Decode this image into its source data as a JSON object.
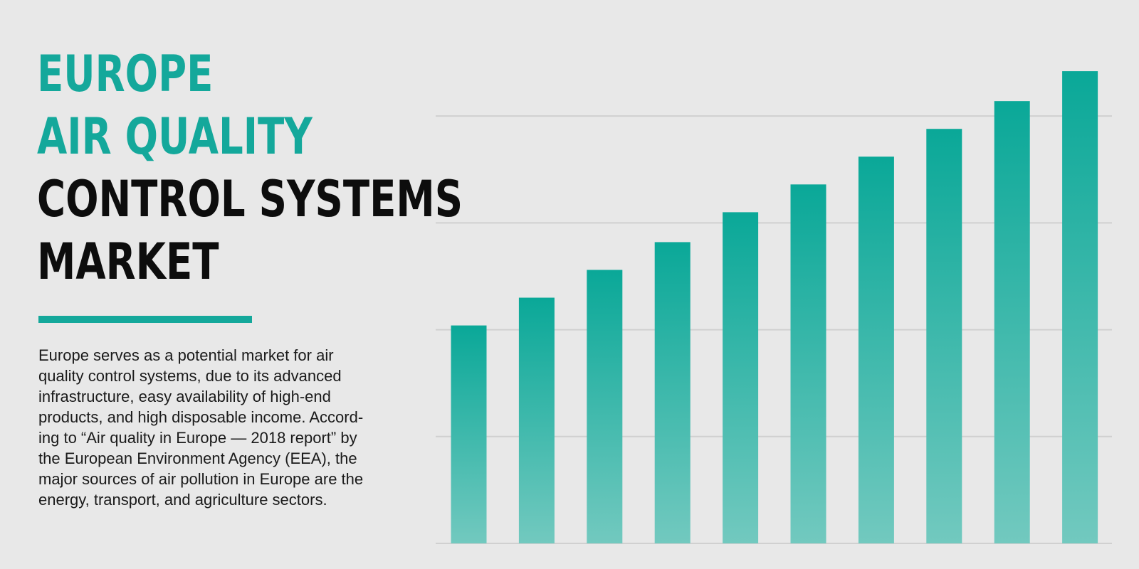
{
  "title": {
    "line1": "EUROPE",
    "line2": "AIR QUALITY",
    "line3": "CONTROL SYSTEMS",
    "line4": "MARKET"
  },
  "description_lines": [
    "Europe serves as a potential market for air",
    "quality control systems, due to its advanced",
    "infrastructure, easy availability of high-end",
    "products, and high disposable income. Accord-",
    "ing to “Air quality in Europe — 2018 report” by",
    "the European Environment Agency (EEA), the",
    "major sources of air pollution in Europe are the",
    "energy, transport, and agriculture sectors."
  ],
  "colors": {
    "accent": "#14a89b",
    "bar_top": "#0aa898",
    "bar_bottom": "#72c9bf",
    "title_dark": "#0d0d0d",
    "background": "#e8e8e8",
    "gridline": "#d0d0d0"
  },
  "chart_data": {
    "type": "bar",
    "categories": [
      "",
      "",
      "",
      "",
      "",
      "",
      "",
      "",
      "",
      ""
    ],
    "values": [
      2.04,
      2.3,
      2.56,
      2.82,
      3.1,
      3.36,
      3.62,
      3.88,
      4.14,
      4.42
    ],
    "ylim": [
      0,
      4.9
    ],
    "gridlines": [
      1,
      2,
      3,
      4
    ],
    "grid": true,
    "axes_labels_shown": false,
    "legend": "none"
  }
}
